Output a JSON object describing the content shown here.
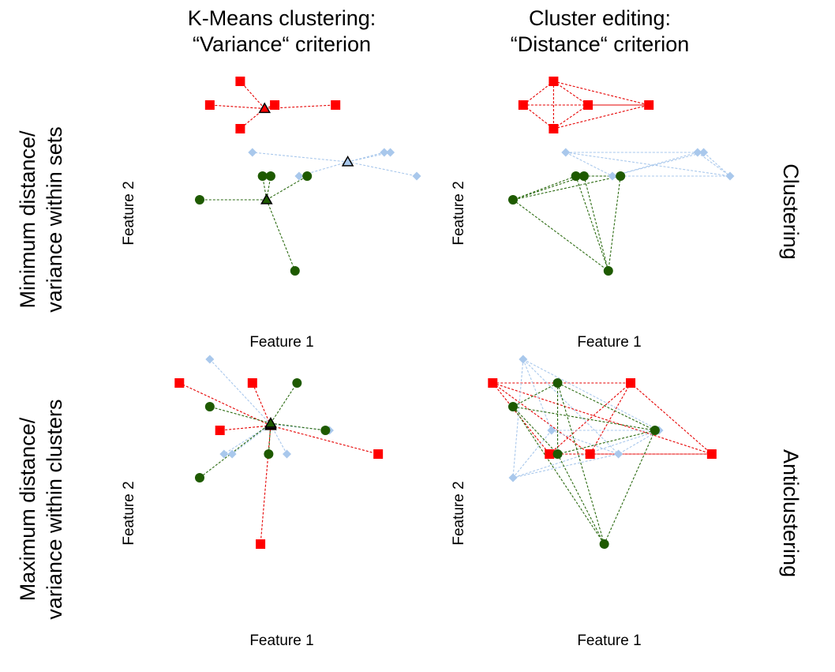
{
  "column_titles": [
    [
      "K-Means clustering:",
      "“Variance“ criterion"
    ],
    [
      "Cluster editing:",
      "“Distance“ criterion"
    ]
  ],
  "row_labels": [
    [
      "Minimum distance/",
      "variance within sets"
    ],
    [
      "Maximum distance/",
      "variance within clusters"
    ]
  ],
  "side_labels": [
    "Clustering",
    "Anticlustering"
  ],
  "axes": {
    "xlabel": "Feature 1",
    "ylabel": "Feature 2"
  },
  "colors": {
    "red": "#ff0000",
    "green": "#1e5a00",
    "blue": "#a9c8ec",
    "edge_red": "#e60000",
    "edge_green": "#2a6a10",
    "edge_blue": "#a9c8ec"
  },
  "chart_data": [
    {
      "type": "scatter",
      "panel": "kmeans-clustering",
      "series": [
        {
          "group": "red",
          "points": [
            [
              2.0,
              6.8
            ],
            [
              0.5,
              5.8
            ],
            [
              2.0,
              4.8
            ],
            [
              3.7,
              5.8
            ],
            [
              6.7,
              5.8
            ]
          ],
          "center": [
            3.2,
            5.65
          ]
        },
        {
          "group": "blue",
          "points": [
            [
              2.6,
              3.8
            ],
            [
              9.1,
              3.8
            ],
            [
              9.4,
              3.8
            ],
            [
              4.9,
              2.8
            ],
            [
              10.7,
              2.8
            ]
          ],
          "center": [
            7.3,
            3.4
          ]
        },
        {
          "group": "green",
          "points": [
            [
              3.1,
              2.8
            ],
            [
              3.5,
              2.8
            ],
            [
              5.3,
              2.8
            ],
            [
              0.0,
              1.8
            ],
            [
              4.7,
              -1.2
            ]
          ],
          "center": [
            3.3,
            1.8
          ]
        }
      ]
    },
    {
      "type": "scatter",
      "panel": "cluster-editing-clustering",
      "series": [
        {
          "group": "red",
          "points": [
            [
              2.0,
              6.8
            ],
            [
              0.5,
              5.8
            ],
            [
              2.0,
              4.8
            ],
            [
              3.7,
              5.8
            ],
            [
              6.7,
              5.8
            ]
          ]
        },
        {
          "group": "blue",
          "points": [
            [
              2.6,
              3.8
            ],
            [
              9.1,
              3.8
            ],
            [
              9.4,
              3.8
            ],
            [
              4.9,
              2.8
            ],
            [
              10.7,
              2.8
            ]
          ]
        },
        {
          "group": "green",
          "points": [
            [
              3.1,
              2.8
            ],
            [
              3.5,
              2.8
            ],
            [
              5.3,
              2.8
            ],
            [
              0.0,
              1.8
            ],
            [
              4.7,
              -1.2
            ]
          ]
        }
      ]
    },
    {
      "type": "scatter",
      "panel": "kmeans-anticlustering",
      "series": [
        {
          "group": "red",
          "points": [
            [
              -1.0,
              6.8
            ],
            [
              2.6,
              6.8
            ],
            [
              1.0,
              4.8
            ],
            [
              8.8,
              3.8
            ],
            [
              3.0,
              0.0
            ]
          ],
          "center": [
            3.5,
            5.0
          ]
        },
        {
          "group": "blue",
          "points": [
            [
              0.5,
              7.8
            ],
            [
              6.4,
              4.8
            ],
            [
              1.2,
              3.8
            ],
            [
              1.6,
              3.8
            ],
            [
              4.3,
              3.8
            ]
          ],
          "center": [
            3.5,
            5.05
          ]
        },
        {
          "group": "green",
          "points": [
            [
              4.8,
              6.8
            ],
            [
              0.5,
              5.8
            ],
            [
              6.2,
              4.8
            ],
            [
              3.4,
              3.8
            ],
            [
              0.0,
              2.8
            ]
          ],
          "center": [
            3.5,
            5.1
          ]
        }
      ]
    },
    {
      "type": "scatter",
      "panel": "cluster-editing-anticlustering",
      "series": [
        {
          "group": "red",
          "points": [
            [
              -1.0,
              6.8
            ],
            [
              5.8,
              6.8
            ],
            [
              1.8,
              3.8
            ],
            [
              3.8,
              3.8
            ],
            [
              9.8,
              3.8
            ]
          ]
        },
        {
          "group": "blue",
          "points": [
            [
              0.5,
              7.8
            ],
            [
              1.9,
              4.8
            ],
            [
              7.2,
              4.8
            ],
            [
              5.2,
              3.8
            ],
            [
              0.0,
              2.8
            ]
          ]
        },
        {
          "group": "green",
          "points": [
            [
              2.2,
              6.8
            ],
            [
              0.0,
              5.8
            ],
            [
              7.0,
              4.8
            ],
            [
              2.2,
              3.8
            ],
            [
              4.5,
              0.0
            ]
          ]
        }
      ]
    }
  ]
}
